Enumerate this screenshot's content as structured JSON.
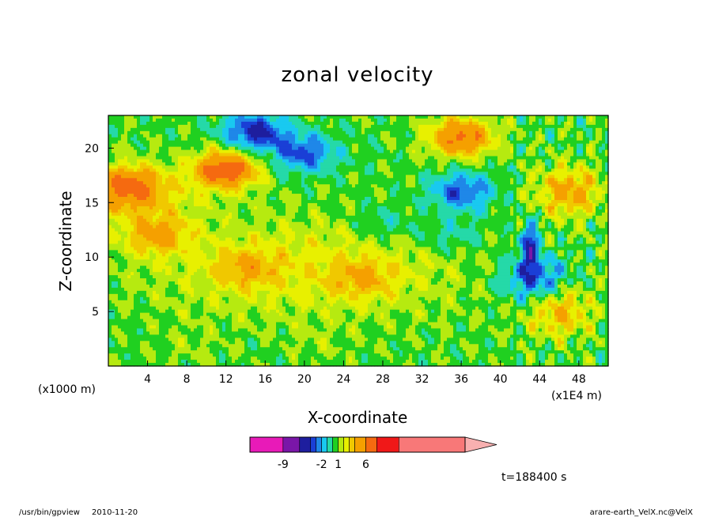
{
  "chart_data": {
    "type": "heatmap",
    "title": "zonal velocity",
    "xlabel": "X-coordinate",
    "ylabel": "Z-coordinate",
    "x_unit": "(x1E4 m)",
    "y_unit": "(x1000 m)",
    "xlim": [
      0,
      51
    ],
    "ylim": [
      0,
      23
    ],
    "x_ticks": [
      "4",
      "8",
      "12",
      "16",
      "20",
      "24",
      "28",
      "32",
      "36",
      "40",
      "44",
      "48"
    ],
    "y_ticks": [
      "5",
      "10",
      "15",
      "20"
    ],
    "x_tick_values": [
      4,
      8,
      12,
      16,
      20,
      24,
      28,
      32,
      36,
      40,
      44,
      48
    ],
    "y_tick_values": [
      5,
      10,
      15,
      20
    ],
    "colorbar": {
      "labels": [
        "-9",
        "-2",
        "1",
        "6"
      ],
      "label_values": [
        -9,
        -2,
        1,
        6
      ],
      "bins": [
        {
          "lo": -15,
          "hi": -9,
          "color": "#e81ab8"
        },
        {
          "lo": -9,
          "hi": -6,
          "color": "#7a16a8"
        },
        {
          "lo": -6,
          "hi": -4,
          "color": "#1e1e9e"
        },
        {
          "lo": -4,
          "hi": -3,
          "color": "#1a3fd6"
        },
        {
          "lo": -3,
          "hi": -2,
          "color": "#1f87e8"
        },
        {
          "lo": -2,
          "hi": -1,
          "color": "#19c9f0"
        },
        {
          "lo": -1,
          "hi": 0,
          "color": "#25d9a8"
        },
        {
          "lo": 0,
          "hi": 1,
          "color": "#20d020"
        },
        {
          "lo": 1,
          "hi": 2,
          "color": "#b6ea10"
        },
        {
          "lo": 2,
          "hi": 3,
          "color": "#e8f000"
        },
        {
          "lo": 3,
          "hi": 4,
          "color": "#f0c800"
        },
        {
          "lo": 4,
          "hi": 6,
          "color": "#f5a000"
        },
        {
          "lo": 6,
          "hi": 8,
          "color": "#f56a10"
        },
        {
          "lo": 8,
          "hi": 12,
          "color": "#f01818"
        },
        {
          "lo": 12,
          "hi": 24,
          "color": "#f87878"
        }
      ],
      "extend_color": "#f8b0b0"
    },
    "features": [
      {
        "x": 15,
        "z": 21.5,
        "value": -5
      },
      {
        "x": 20,
        "z": 19.5,
        "value": -4
      },
      {
        "x": 36,
        "z": 16,
        "value": -4
      },
      {
        "x": 28,
        "z": 13,
        "value": -1.5
      },
      {
        "x": 35,
        "z": 12,
        "value": -1.5
      },
      {
        "x": 12,
        "z": 18,
        "value": 7
      },
      {
        "x": 2,
        "z": 16.5,
        "value": 5
      },
      {
        "x": 36,
        "z": 21,
        "value": 6
      },
      {
        "x": 43,
        "z": 11,
        "value": -5
      },
      {
        "x": 43.5,
        "z": 8,
        "value": -4
      },
      {
        "x": 14,
        "z": 9,
        "value": 2.5
      },
      {
        "x": 26,
        "z": 8,
        "value": 2.5
      },
      {
        "x": 8,
        "z": 2,
        "value": 0.5
      },
      {
        "x": 22,
        "z": 2,
        "value": 0.5
      },
      {
        "x": 46,
        "z": 5,
        "value": 3.5
      },
      {
        "x": 5,
        "z": 12,
        "value": 3.5
      },
      {
        "x": 47,
        "z": 16,
        "value": 4
      }
    ]
  },
  "footer": {
    "time_label": "t=188400 s",
    "program": "/usr/bin/gpview",
    "date": "2010-11-20",
    "source": "arare-earth_VelX.nc@VelX"
  }
}
